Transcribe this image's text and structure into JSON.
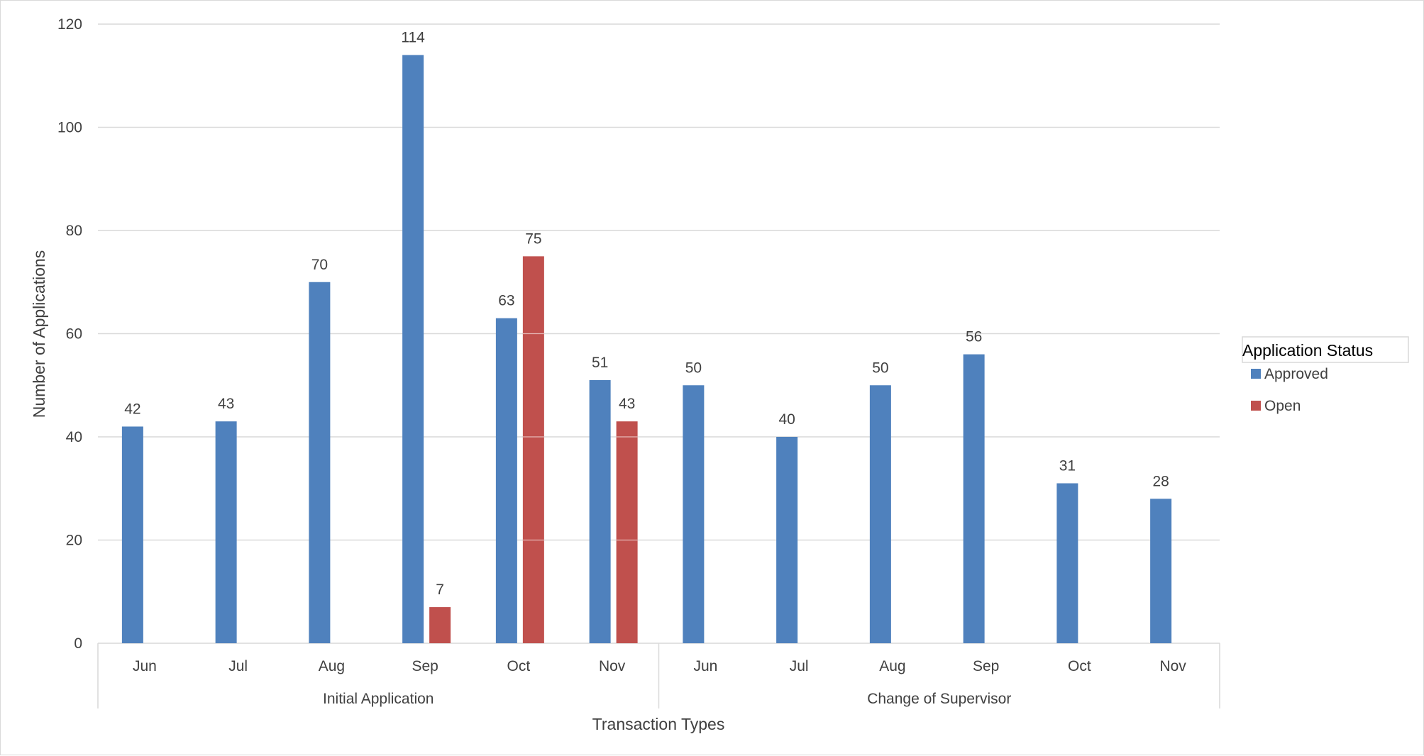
{
  "chart_data": {
    "type": "bar",
    "title": "",
    "xlabel": "Transaction Types",
    "ylabel": "Number of Applications",
    "ylim": [
      0,
      120
    ],
    "yticks": [
      0,
      20,
      40,
      60,
      80,
      100,
      120
    ],
    "grid": true,
    "legend": {
      "title": "Application Status",
      "placement": "right"
    },
    "groups": [
      {
        "name": "Initial Application",
        "categories": [
          "Jun",
          "Jul",
          "Aug",
          "Sep",
          "Oct",
          "Nov"
        ]
      },
      {
        "name": "Change of Supervisor",
        "categories": [
          "Jun",
          "Jul",
          "Aug",
          "Sep",
          "Oct",
          "Nov"
        ]
      }
    ],
    "series": [
      {
        "name": "Approved",
        "color": "#4F81BD",
        "values": [
          42,
          43,
          70,
          114,
          63,
          51,
          50,
          40,
          50,
          56,
          31,
          28
        ]
      },
      {
        "name": "Open",
        "color": "#C0504D",
        "values": [
          null,
          null,
          null,
          7,
          75,
          43,
          null,
          null,
          null,
          null,
          null,
          null
        ]
      }
    ]
  }
}
